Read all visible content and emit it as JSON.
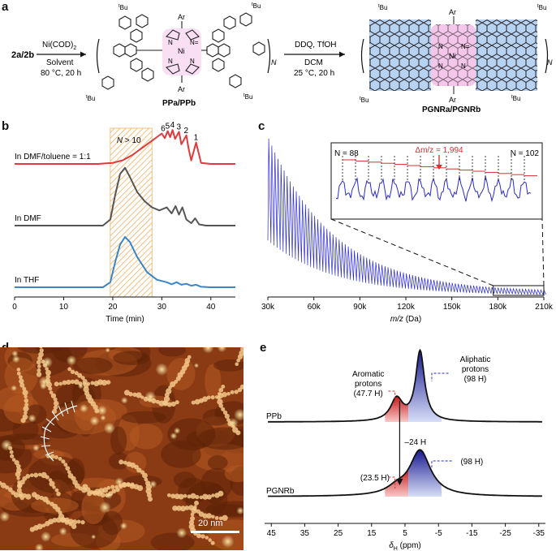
{
  "panels": {
    "a": "a",
    "b": "b",
    "c": "c",
    "d": "d",
    "e": "e"
  },
  "scheme": {
    "start": "2a/2b",
    "step1": {
      "reagent": "Ni(COD)",
      "reagent_sub": "2",
      "solvent": "Solvent",
      "conditions": "80 °C, 20 h"
    },
    "step2": {
      "reagent": "DDQ, TfOH",
      "solvent": "DCM",
      "conditions": "25 °C, 20 h"
    },
    "polymer_label": "PPa/PPb",
    "ribbon_label": "PGNRa/PGNRb",
    "repeat_n": "N",
    "substituent_ar": "Ar",
    "tbu": "Bu",
    "tbu_prefix": "t",
    "metal": "Ni",
    "nitrogen": "N",
    "nitrogen_plus": "N="
  },
  "chart_data": [
    {
      "type": "line",
      "panel": "b",
      "xlabel": "Time (min)",
      "xlim": [
        0,
        45
      ],
      "x_ticks": [
        0,
        10,
        20,
        30,
        40
      ],
      "highlight": {
        "x_range": [
          19.5,
          28
        ],
        "label_var": "N",
        "label_rest": " > 10",
        "color": "#f0b060"
      },
      "peak_labels": [
        {
          "x": 37,
          "label": "1"
        },
        {
          "x": 35,
          "label": "2"
        },
        {
          "x": 33.5,
          "label": "3"
        },
        {
          "x": 32.2,
          "label": "4"
        },
        {
          "x": 31.2,
          "label": "5"
        },
        {
          "x": 30.3,
          "label": "6"
        }
      ],
      "series": [
        {
          "name": "In DMF/toluene = 1:1",
          "color": "#e0393e",
          "x": [
            0,
            17,
            20,
            22,
            24,
            26,
            27,
            28,
            29,
            30,
            30.6,
            31.2,
            31.7,
            32.2,
            32.7,
            33.5,
            34,
            35,
            35.5,
            36,
            37,
            38,
            40,
            45
          ],
          "y": [
            0,
            0,
            0.03,
            0.1,
            0.25,
            0.45,
            0.55,
            0.65,
            0.75,
            0.85,
            0.72,
            0.92,
            0.75,
            0.95,
            0.7,
            0.9,
            0.55,
            0.8,
            0.4,
            0.1,
            0.6,
            0.03,
            0,
            0
          ]
        },
        {
          "name": "In DMF",
          "color": "#555555",
          "x": [
            0,
            18,
            19.5,
            20.5,
            21.5,
            22.5,
            23.5,
            25,
            26.5,
            28,
            29.5,
            31,
            32,
            32.8,
            33.5,
            34.2,
            35,
            36,
            36.8,
            37.6,
            39,
            41,
            45
          ],
          "y": [
            0,
            0,
            0.1,
            0.5,
            0.85,
            0.95,
            0.8,
            0.55,
            0.4,
            0.3,
            0.25,
            0.3,
            0.2,
            0.32,
            0.18,
            0.3,
            0.1,
            0.04,
            0.12,
            0.02,
            0,
            0,
            0
          ]
        },
        {
          "name": "In THF",
          "color": "#3a86c8",
          "x": [
            0,
            18,
            19.5,
            20.5,
            21.5,
            22.5,
            23.5,
            25,
            27,
            29,
            31,
            32,
            33,
            34,
            35,
            36,
            37,
            38,
            40,
            45
          ],
          "y": [
            0,
            0,
            0.1,
            0.5,
            0.85,
            1.0,
            0.9,
            0.6,
            0.3,
            0.15,
            0.1,
            0.06,
            0.1,
            0.05,
            0.07,
            0.03,
            0.05,
            0.01,
            0,
            0
          ]
        }
      ]
    },
    {
      "type": "line",
      "panel": "c",
      "xlabel_var": "m/z",
      "xlabel_rest": " (Da)",
      "xlim": [
        30000,
        210000
      ],
      "x_ticks": [
        "30k",
        "60k",
        "90k",
        "120k",
        "150k",
        "180k",
        "210k"
      ],
      "repeat_spacing_da": 1994,
      "decay": {
        "start_amplitude": 1.0,
        "end_amplitude": 0.03
      },
      "zoom_window_da": [
        177000,
        210000
      ],
      "inset": {
        "n_start_label": "N = 88",
        "n_end_label": "N = 102",
        "delta_label": "Δm/z = 1,994",
        "peaks": 15
      },
      "series": [
        {
          "name": "",
          "color": "#2a2ad0"
        }
      ]
    },
    {
      "type": "line",
      "panel": "e",
      "xlabel": "δH (ppm)",
      "xlabel_main": "δ",
      "xlabel_sub": "H",
      "xlabel_rest": " (ppm)",
      "xlim": [
        47,
        -37
      ],
      "x_ticks": [
        45,
        35,
        25,
        15,
        5,
        -5,
        -15,
        -25,
        -35
      ],
      "series": [
        {
          "name": "PPb",
          "color": "#111111",
          "peaks": [
            {
              "center": 7.5,
              "height": 0.32,
              "width": 2.2
            },
            {
              "center": 0.5,
              "height": 1.0,
              "width": 1.6
            }
          ]
        },
        {
          "name": "PGNRb",
          "color": "#111111",
          "peaks": [
            {
              "center": 7.5,
              "height": 0.1,
              "width": 3.5
            },
            {
              "center": 0.5,
              "height": 0.75,
              "width": 3.8
            }
          ]
        }
      ],
      "annotations": {
        "aromatic": "Aromatic\nprotons\n(47.7 H)",
        "aliphatic": "Aliphatic\nprotons\n(98 H)",
        "arom2": "(23.5 H)",
        "aliph2": "(98 H)",
        "change": "–24 H"
      }
    }
  ],
  "stm": {
    "scale_label": "20 nm"
  }
}
